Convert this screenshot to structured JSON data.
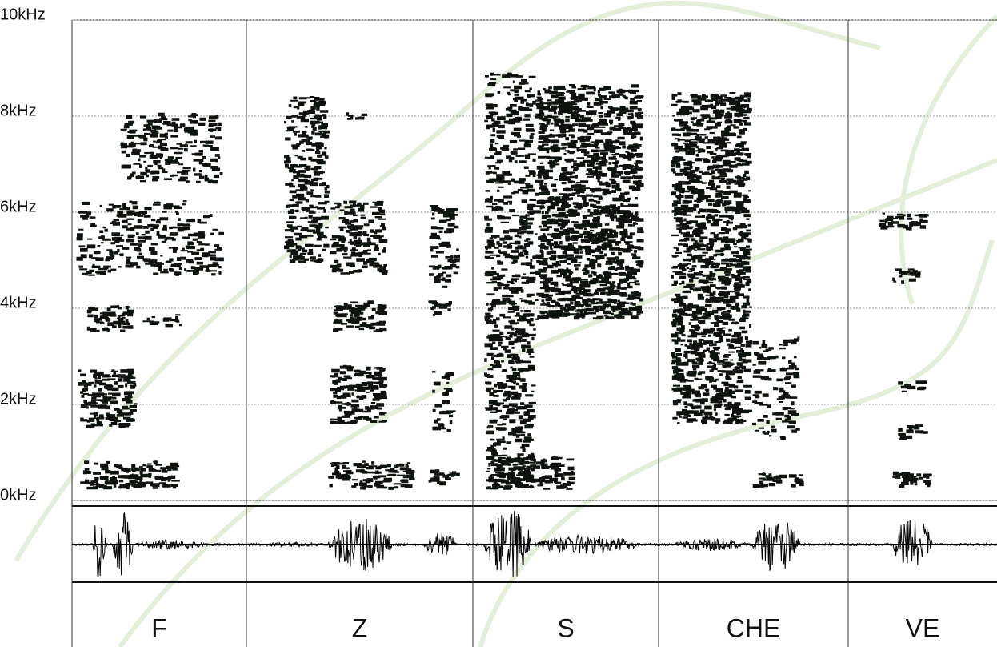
{
  "chart_data": {
    "type": "spectrogram",
    "categories": [
      "F",
      "Z",
      "S",
      "CHE",
      "VE"
    ],
    "ylim": [
      0,
      10
    ],
    "yticks": [
      {
        "value": 0,
        "label": "0kHz"
      },
      {
        "value": 2,
        "label": "2kHz"
      },
      {
        "value": 4,
        "label": "4kHz"
      },
      {
        "value": 6,
        "label": "6kHz"
      },
      {
        "value": 8,
        "label": "8kHz"
      },
      {
        "value": 10,
        "label": "10kHz"
      }
    ],
    "grid": true
  }
}
